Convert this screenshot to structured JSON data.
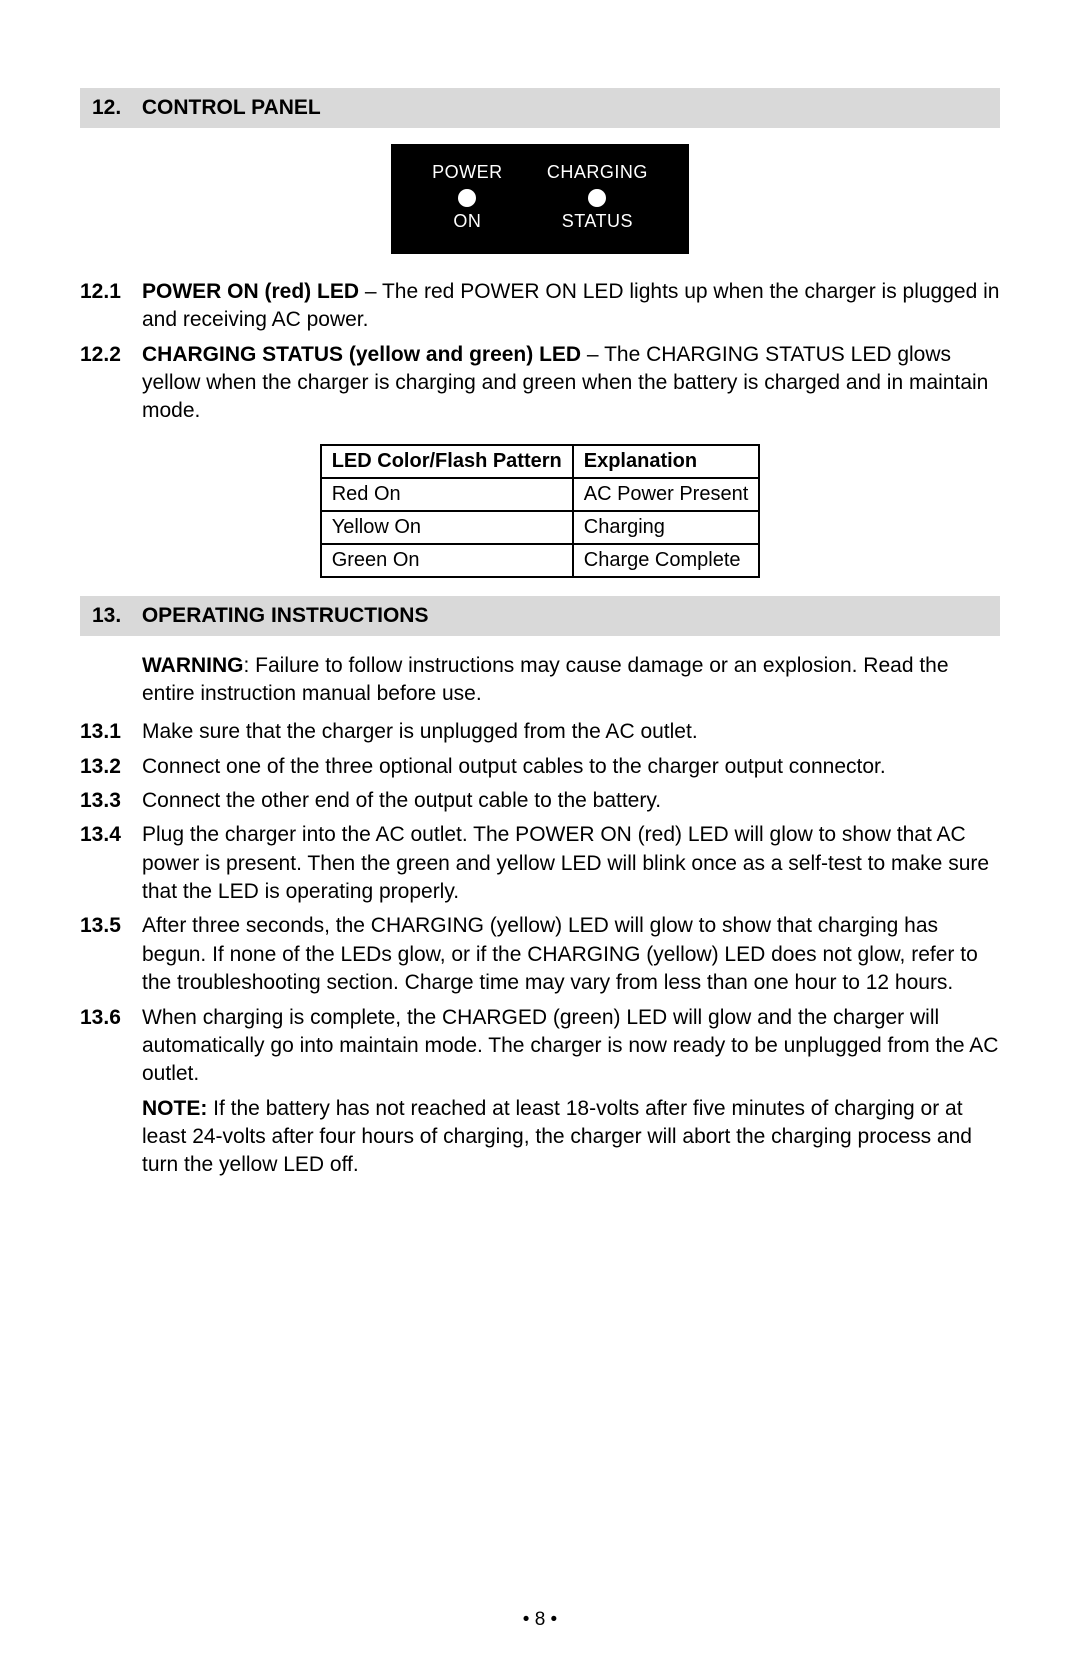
{
  "section12": {
    "number": "12.",
    "title": "CONTROL PANEL",
    "panel": {
      "left_top": "POWER",
      "left_bottom": "ON",
      "right_top": "CHARGING",
      "right_bottom": "STATUS",
      "bg_color": "#000000",
      "text_color": "#ffffff",
      "led_color": "#ffffff"
    },
    "items": [
      {
        "num": "12.1",
        "lead": "POWER ON (red) LED",
        "body": " – The red POWER ON LED lights up when the charger is plugged in and receiving AC power."
      },
      {
        "num": "12.2",
        "lead": "CHARGING STATUS (yellow and green) LED",
        "body": " – The CHARGING STATUS LED glows yellow when the charger is charging and green when the battery is charged and in maintain mode."
      }
    ],
    "table": {
      "header": [
        "LED Color/Flash Pattern",
        "Explanation"
      ],
      "rows": [
        [
          "Red On",
          "AC Power Present"
        ],
        [
          "Yellow On",
          "Charging"
        ],
        [
          "Green On",
          "Charge Complete"
        ]
      ],
      "border_color": "#000000"
    }
  },
  "section13": {
    "number": "13.",
    "title": "OPERATING INSTRUCTIONS",
    "warning_label": "WARNING",
    "warning_body": ": Failure to follow instructions may cause damage or an explosion. Read the entire instruction manual before use.",
    "items": [
      {
        "num": "13.1",
        "body": "Make sure that the charger is unplugged from the AC outlet."
      },
      {
        "num": "13.2",
        "body": "Connect one of the three optional output cables to the charger output connector."
      },
      {
        "num": "13.3",
        "body": "Connect the other end of the output cable to the battery."
      },
      {
        "num": "13.4",
        "body": "Plug the charger into the AC outlet. The POWER ON (red) LED will glow to show that AC power is present. Then the green and yellow LED will blink once as a self-test to make sure that the LED is operating properly."
      },
      {
        "num": "13.5",
        "body": "After three seconds, the CHARGING (yellow) LED will glow to show that charging has begun. If none of the LEDs glow, or if the CHARGING (yellow) LED does not glow, refer to the troubleshooting section. Charge time may vary from less than one hour to 12 hours."
      },
      {
        "num": "13.6",
        "body": "When charging is complete, the CHARGED (green) LED will glow and the charger will automatically go into maintain mode. The charger is now ready to be unplugged from the AC outlet."
      }
    ],
    "note_label": "NOTE:",
    "note_body": " If the battery has not reached at least 18-volts after five minutes of charging or at least 24-volts after four hours of charging, the charger will abort the charging process and turn the yellow LED off."
  },
  "page_number": "• 8 •",
  "colors": {
    "header_bg": "#d9d9d9",
    "page_bg": "#ffffff",
    "text": "#000000"
  }
}
